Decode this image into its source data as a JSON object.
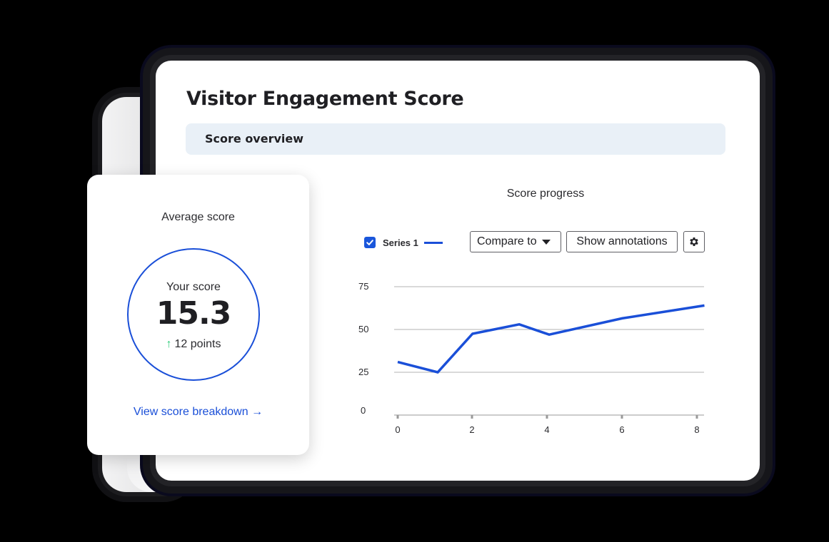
{
  "main_card": {
    "title": "Visitor Engagement Score",
    "section_label": "Score overview"
  },
  "average_card": {
    "title": "Average score",
    "score_label": "Your score",
    "score_value": "15.3",
    "delta_icon": "arrow-up-icon",
    "delta_arrow": "↑",
    "delta_text": "12 points",
    "delta_color": "#2ecc7a",
    "link_label": "View score breakdown",
    "link_arrow": "→",
    "accent_color": "#1a4fd8"
  },
  "chart_controls": {
    "legend_checked": true,
    "legend_label": "Series 1",
    "compare_label": "Compare to",
    "annotations_label": "Show annotations",
    "settings_icon": "gear-icon"
  },
  "chart_data": {
    "type": "line",
    "title": "Score progress",
    "xlabel": "",
    "ylabel": "",
    "x_ticks": [
      0,
      2,
      4,
      6,
      8
    ],
    "y_ticks": [
      0,
      25,
      50,
      75
    ],
    "xlim": [
      0,
      8.2
    ],
    "ylim": [
      0,
      75
    ],
    "grid": true,
    "legend_position": "top-left",
    "series": [
      {
        "name": "Series 1",
        "color": "#1a4fd8",
        "x": [
          0,
          1.07,
          2,
          3.25,
          4.05,
          6,
          8.2
        ],
        "values": [
          31,
          25,
          47.5,
          53,
          47,
          56.5,
          64
        ]
      }
    ]
  }
}
